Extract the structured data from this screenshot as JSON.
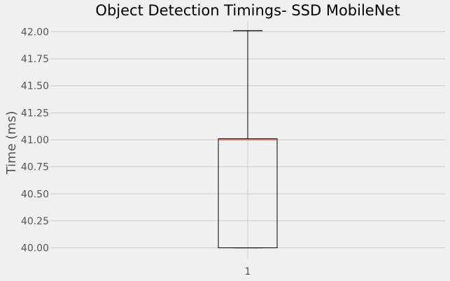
{
  "chart_data": {
    "type": "box",
    "title": "Object Detection Timings- SSD MobileNet",
    "xlabel": "",
    "ylabel": "Time (ms)",
    "categories": [
      "1"
    ],
    "boxes": [
      {
        "label": "1",
        "whisker_low": 40.0,
        "q1": 40.0,
        "median": 41.0,
        "q3": 41.01,
        "whisker_high": 42.01
      }
    ],
    "ylim": [
      39.9,
      42.1
    ],
    "yticks": [
      40.0,
      40.25,
      40.5,
      40.75,
      41.0,
      41.25,
      41.5,
      41.75,
      42.0
    ],
    "ytick_labels": [
      "40.00",
      "40.25",
      "40.50",
      "40.75",
      "41.00",
      "41.25",
      "41.50",
      "41.75",
      "42.00"
    ],
    "grid": true,
    "colors": {
      "background": "#f0f0f0",
      "grid": "#cbcbcb",
      "box": "#000000",
      "median": "#e24a33",
      "text": "#555555"
    }
  }
}
